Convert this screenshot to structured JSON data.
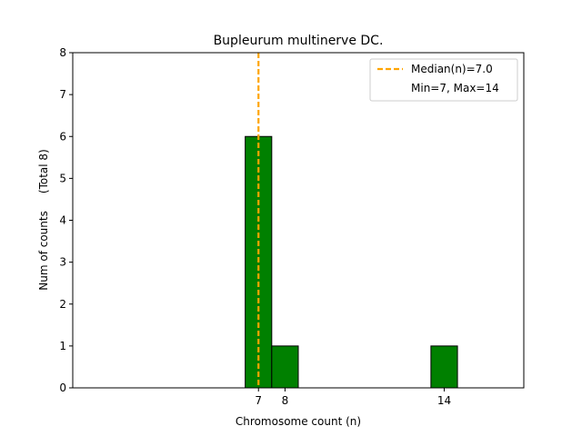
{
  "chart_data": {
    "type": "bar",
    "title": "Bupleurum multinerve DC.",
    "xlabel": "Chromosome count (n)",
    "ylabel": "Num of counts     (Total 8)",
    "xlim": [
      0,
      17
    ],
    "ylim": [
      0,
      8
    ],
    "xticks": [
      7,
      8,
      14
    ],
    "yticks": [
      0,
      1,
      2,
      3,
      4,
      5,
      6,
      7,
      8
    ],
    "bars": [
      {
        "x": 7,
        "value": 6
      },
      {
        "x": 8,
        "value": 1
      },
      {
        "x": 14,
        "value": 1
      }
    ],
    "median": 7.0,
    "legend": {
      "placement": "top-right",
      "entries": [
        "Median(n)=7.0",
        "Min=7, Max=14"
      ]
    },
    "colors": {
      "bar": "#008000",
      "median_line": "#FFA500",
      "edge": "#000000"
    }
  }
}
